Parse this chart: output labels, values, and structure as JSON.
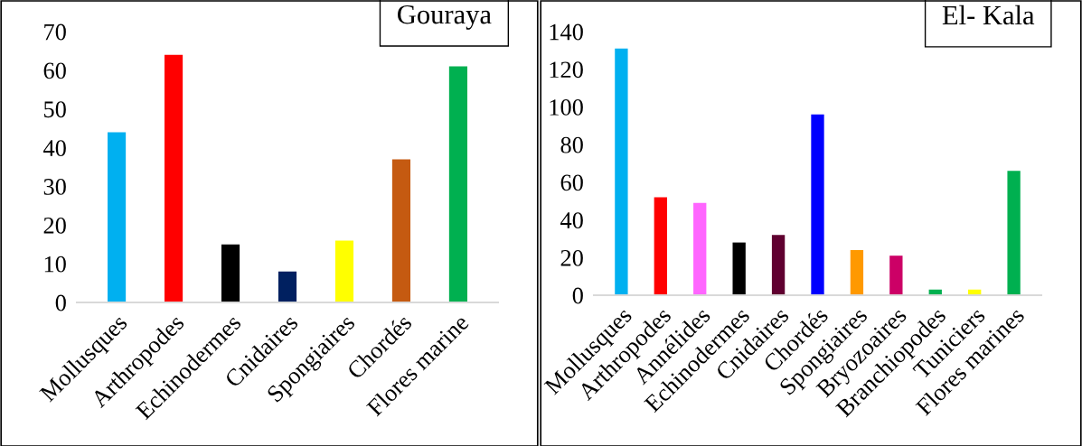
{
  "chart_data": [
    {
      "type": "bar",
      "title": "Gouraya",
      "categories": [
        "Mollusques",
        "Arthropodes",
        "Echinodermes",
        "Cnidaires",
        "Spongiaires",
        "Chordés",
        "Flores marine"
      ],
      "values": [
        44,
        64,
        15,
        8,
        16,
        37,
        61
      ],
      "colors": [
        "#00b0f0",
        "#ff0000",
        "#000000",
        "#002060",
        "#ffff00",
        "#c55a11",
        "#00b050"
      ],
      "ylim": [
        0,
        70
      ],
      "yticks": [
        0,
        10,
        20,
        30,
        40,
        50,
        60,
        70
      ],
      "grid": false,
      "legend": false
    },
    {
      "type": "bar",
      "title": "El- Kala",
      "categories": [
        "Mollusques",
        "Arthropodes",
        "Annélides",
        "Echinodermes",
        "Cnidaires",
        "Chordés",
        "Spongiaires",
        "Bryozoaires",
        "Branchiopodes",
        "Tuniciers",
        "Flores marines"
      ],
      "values": [
        131,
        52,
        49,
        28,
        32,
        96,
        24,
        21,
        3,
        3,
        66
      ],
      "colors": [
        "#00b0f0",
        "#ff0000",
        "#ff66ff",
        "#000000",
        "#600030",
        "#0000ff",
        "#ff9900",
        "#cc0066",
        "#00b050",
        "#ffff00",
        "#00b050"
      ],
      "ylim": [
        0,
        140
      ],
      "yticks": [
        0,
        20,
        40,
        60,
        80,
        100,
        120,
        140
      ],
      "grid": false,
      "legend": false
    }
  ]
}
